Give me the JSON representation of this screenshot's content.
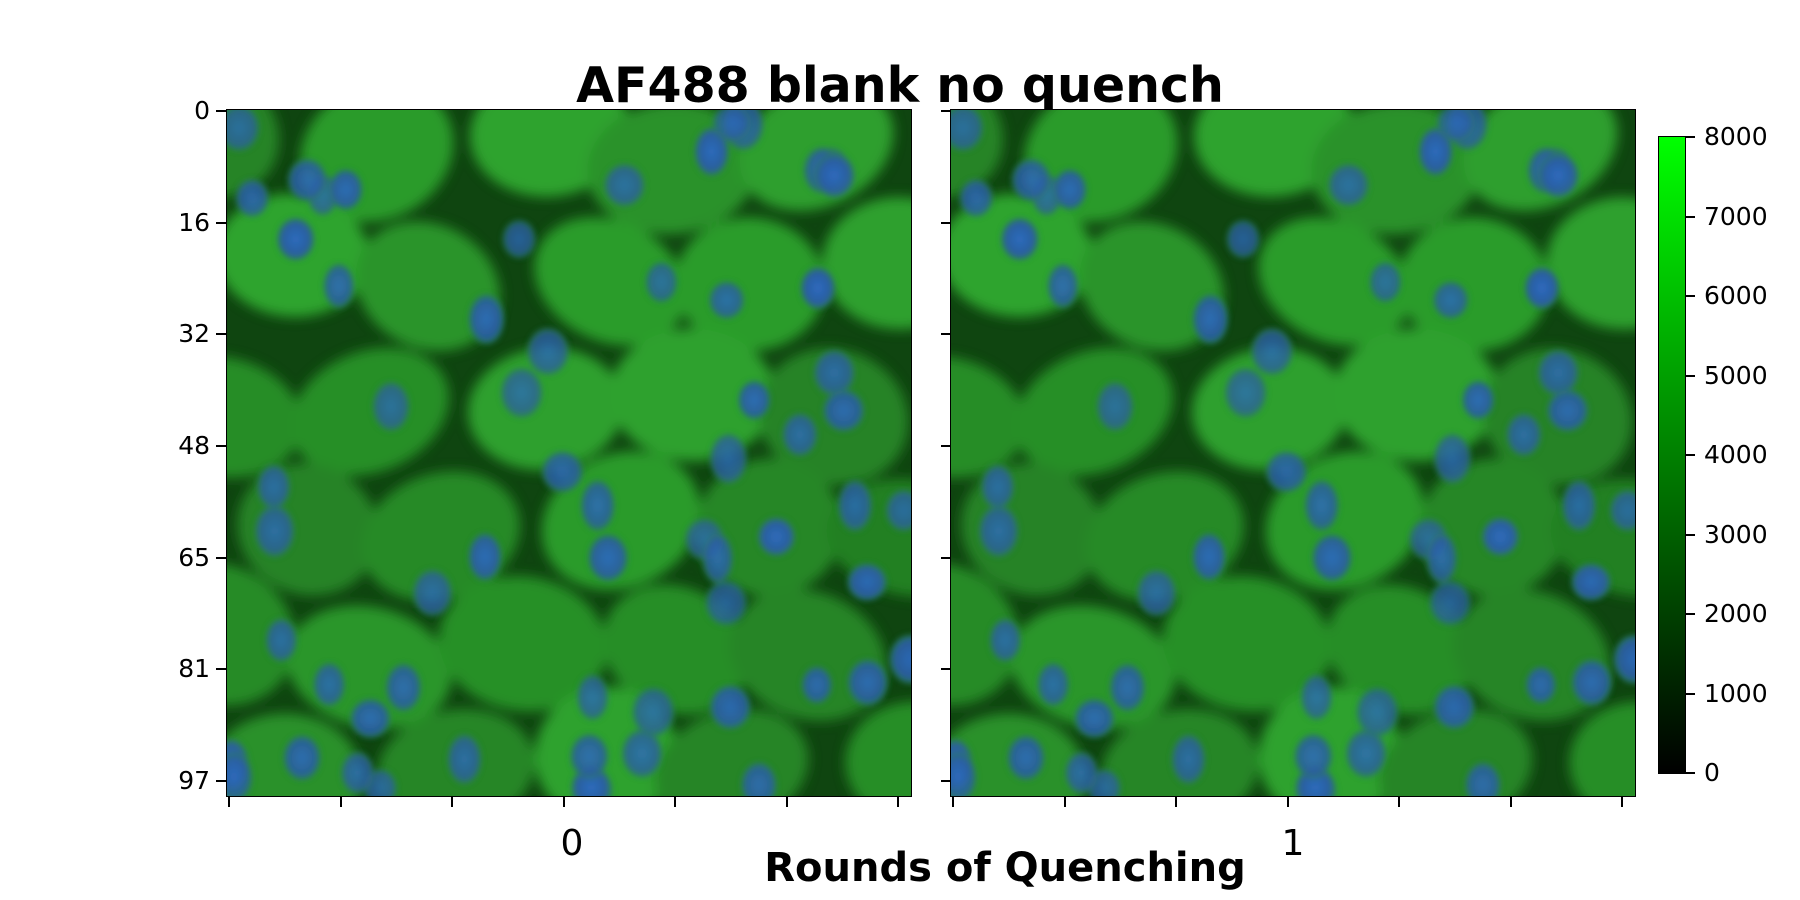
{
  "chart_data": {
    "type": "image",
    "title": "AF488 blank no quench",
    "xlabel": "Rounds of Quenching",
    "ylabel": "",
    "panels": [
      {
        "label": "0"
      },
      {
        "label": "1"
      }
    ],
    "y_ticks": [
      "0",
      "16",
      "32",
      "48",
      "65",
      "81",
      "97"
    ],
    "colorbar": {
      "min": 0,
      "max": 8000,
      "ticks": [
        "0",
        "1000",
        "2000",
        "3000",
        "4000",
        "5000",
        "6000",
        "7000",
        "8000"
      ],
      "colors": [
        "#000000",
        "#00ff00"
      ]
    },
    "colors": {
      "cytoplasm": "#2e9a2e",
      "membrane": "#0f4510",
      "nucleus": "#2b5faa"
    }
  }
}
